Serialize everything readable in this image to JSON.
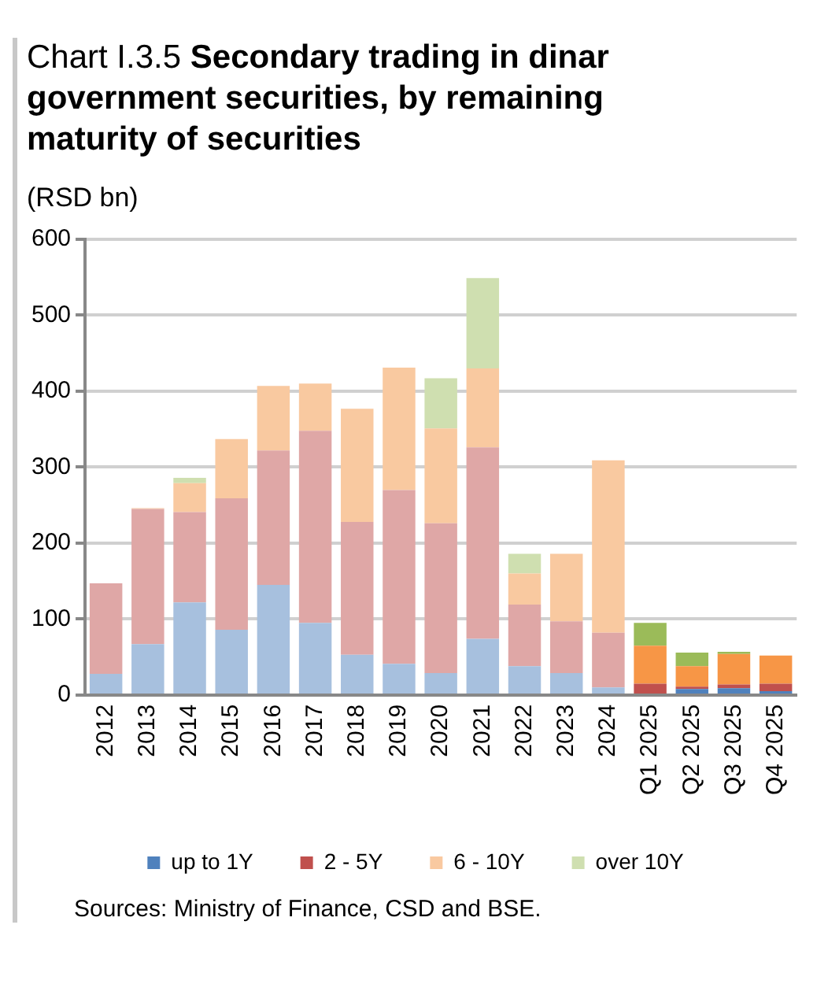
{
  "chart_data": {
    "type": "bar",
    "title": "Chart I.3.5 Secondary trading in dinar government securities, by remaining maturity of securities",
    "ylabel": "(RSD bn)",
    "categories": [
      "2012",
      "2013",
      "2014",
      "2015",
      "2016",
      "2017",
      "2018",
      "2019",
      "2020",
      "2021",
      "2022",
      "2023",
      "2024",
      "Q1 2025",
      "Q2 2025",
      "Q3 2025",
      "Q4 2025"
    ],
    "stacked": true,
    "series": [
      {
        "name": "up to 1Y",
        "color": "#4f81bd",
        "colors": [
          "#a7c0de",
          "#a7c0de",
          "#a7c0de",
          "#a7c0de",
          "#a7c0de",
          "#a7c0de",
          "#a7c0de",
          "#a7c0de",
          "#a7c0de",
          "#a7c0de",
          "#a7c0de",
          "#a7c0de",
          "#a7c0de",
          "#4f81bd",
          "#4f81bd",
          "#4f81bd",
          "#4f81bd"
        ],
        "values": [
          28,
          67,
          122,
          86,
          145,
          95,
          53,
          41,
          29,
          74,
          38,
          29,
          10,
          0,
          8,
          9,
          5
        ]
      },
      {
        "name": "2 - 5Y",
        "color": "#c0504d",
        "colors": [
          "#dfa7a6",
          "#dfa7a6",
          "#dfa7a6",
          "#dfa7a6",
          "#dfa7a6",
          "#dfa7a6",
          "#dfa7a6",
          "#dfa7a6",
          "#dfa7a6",
          "#dfa7a6",
          "#dfa7a6",
          "#dfa7a6",
          "#dfa7a6",
          "#c0504d",
          "#c0504d",
          "#c0504d",
          "#c0504d"
        ],
        "values": [
          119,
          178,
          119,
          173,
          177,
          253,
          175,
          229,
          197,
          252,
          81,
          68,
          72,
          15,
          3,
          5,
          10
        ]
      },
      {
        "name": "6 - 10Y",
        "color": "#f9c9a0",
        "colors": [
          "#f9c9a0",
          "#f9c9a0",
          "#f9c9a0",
          "#f9c9a0",
          "#f9c9a0",
          "#f9c9a0",
          "#f9c9a0",
          "#f9c9a0",
          "#f9c9a0",
          "#f9c9a0",
          "#f9c9a0",
          "#f9c9a0",
          "#f9c9a0",
          "#f79646",
          "#f79646",
          "#f79646",
          "#f79646"
        ],
        "values": [
          0,
          1,
          38,
          78,
          85,
          62,
          149,
          161,
          125,
          104,
          41,
          89,
          227,
          50,
          27,
          40,
          37
        ]
      },
      {
        "name": "over 10Y",
        "color": "#cfdfb0",
        "colors": [
          "#cfdfb0",
          "#cfdfb0",
          "#cfdfb0",
          "#cfdfb0",
          "#cfdfb0",
          "#cfdfb0",
          "#cfdfb0",
          "#cfdfb0",
          "#cfdfb0",
          "#cfdfb0",
          "#cfdfb0",
          "#cfdfb0",
          "#cfdfb0",
          "#9bbb59",
          "#9bbb59",
          "#9bbb59",
          "#9bbb59"
        ],
        "values": [
          0,
          0,
          7,
          0,
          0,
          0,
          0,
          0,
          66,
          119,
          26,
          0,
          0,
          30,
          18,
          3,
          0
        ]
      }
    ],
    "ylim": [
      0,
      600
    ],
    "yticks": [
      0,
      100,
      200,
      300,
      400,
      500,
      600
    ],
    "grid": "y",
    "legend": "bottom",
    "annotations": [
      "Sources: Ministry of Finance, CSD and BSE."
    ]
  }
}
